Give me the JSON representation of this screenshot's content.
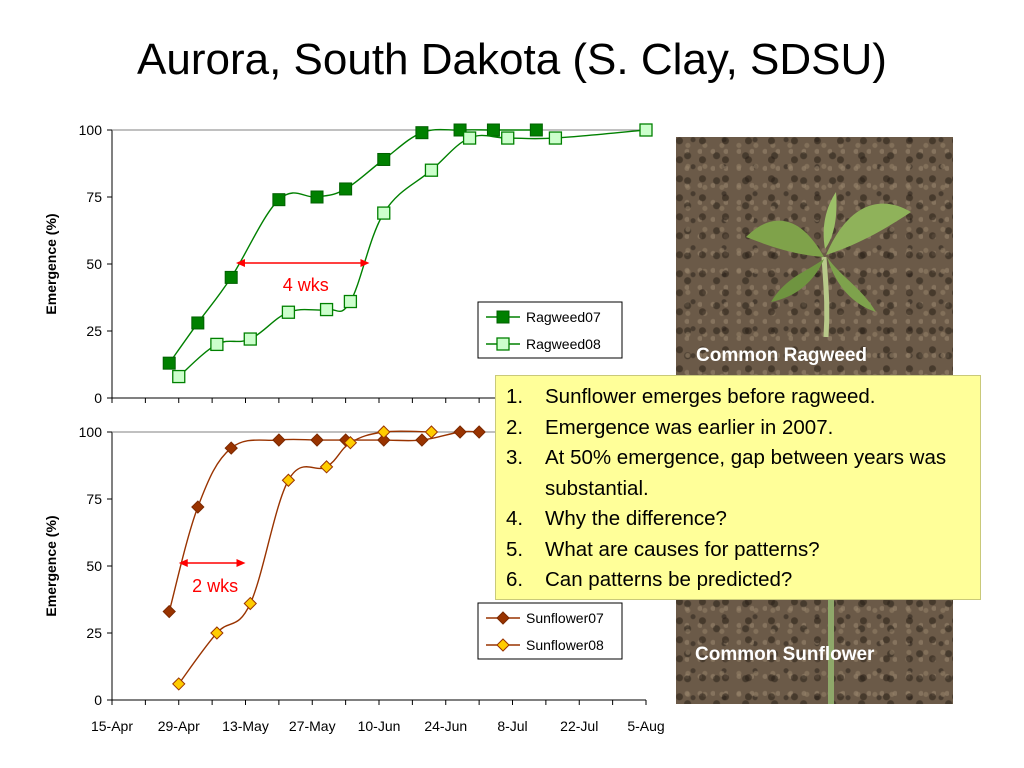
{
  "title": "Aurora, South Dakota (S. Clay, SDSU)",
  "chart_data": [
    {
      "type": "line",
      "ylabel": "Emergence (%)",
      "xlabel": "",
      "ylim": [
        0,
        100
      ],
      "yticks": [
        "0",
        "25",
        "50",
        "75",
        "100"
      ],
      "series": [
        {
          "name": "Ragweed07",
          "color": "#008000",
          "marker": "square-filled",
          "x": [
            "Apr 27",
            "May 3",
            "May 10",
            "May 20",
            "May 28",
            "Jun 3",
            "Jun 11",
            "Jun 19",
            "Jun 27",
            "Jul 4",
            "Jul 13"
          ],
          "y": [
            13,
            28,
            45,
            74,
            75,
            78,
            89,
            99,
            100,
            100,
            100
          ]
        },
        {
          "name": "Ragweed08",
          "color": "#008000",
          "marker": "square-open",
          "x": [
            "Apr 29",
            "May 7",
            "May 14",
            "May 22",
            "May 30",
            "Jun 4",
            "Jun 11",
            "Jun 21",
            "Jun 29",
            "Jul 7",
            "Jul 17",
            "Aug 5"
          ],
          "y": [
            8,
            20,
            22,
            32,
            33,
            36,
            69,
            85,
            97,
            97,
            97,
            100
          ]
        }
      ],
      "annotation": {
        "label": "4 wks",
        "color": "#ff0000",
        "y": 50,
        "from": "May 11",
        "to": "Jun 8"
      }
    },
    {
      "type": "line",
      "ylabel": "Emergence (%)",
      "xlabel": "",
      "ylim": [
        0,
        100
      ],
      "yticks": [
        "0",
        "25",
        "50",
        "75",
        "100"
      ],
      "xticks": [
        "15-Apr",
        "29-Apr",
        "13-May",
        "27-May",
        "10-Jun",
        "24-Jun",
        "8-Jul",
        "22-Jul",
        "5-Aug"
      ],
      "series": [
        {
          "name": "Sunflower07",
          "color": "#993300",
          "marker": "diamond-brown",
          "x": [
            "Apr 27",
            "May 3",
            "May 10",
            "May 20",
            "May 28",
            "Jun 3",
            "Jun 11",
            "Jun 19",
            "Jun 27",
            "Jul 1"
          ],
          "y": [
            33,
            72,
            94,
            97,
            97,
            97,
            97,
            97,
            100,
            100
          ]
        },
        {
          "name": "Sunflower08",
          "color": "#993300",
          "marker": "diamond-yellow",
          "x": [
            "Apr 29",
            "May 7",
            "May 14",
            "May 22",
            "May 30",
            "Jun 4",
            "Jun 11",
            "Jun 21"
          ],
          "y": [
            6,
            25,
            36,
            82,
            87,
            96,
            100,
            100
          ]
        }
      ],
      "annotation": {
        "label": "2 wks",
        "color": "#ff0000",
        "y": 50,
        "from": "Apr 29",
        "to": "May 13"
      }
    }
  ],
  "notes": [
    {
      "num": "1.",
      "text": "Sunflower emerges before ragweed."
    },
    {
      "num": "2.",
      "text": "Emergence was earlier in 2007."
    },
    {
      "num": "3.",
      "text": "At 50% emergence, gap between years was substantial."
    },
    {
      "num": "4.",
      "text": "Why the difference?"
    },
    {
      "num": "5.",
      "text": "What are causes for patterns?"
    },
    {
      "num": "6.",
      "text": "Can patterns be predicted?"
    }
  ],
  "photos": {
    "ragweed_caption": "Common Ragweed",
    "sunflower_caption": "Common Sunflower"
  }
}
